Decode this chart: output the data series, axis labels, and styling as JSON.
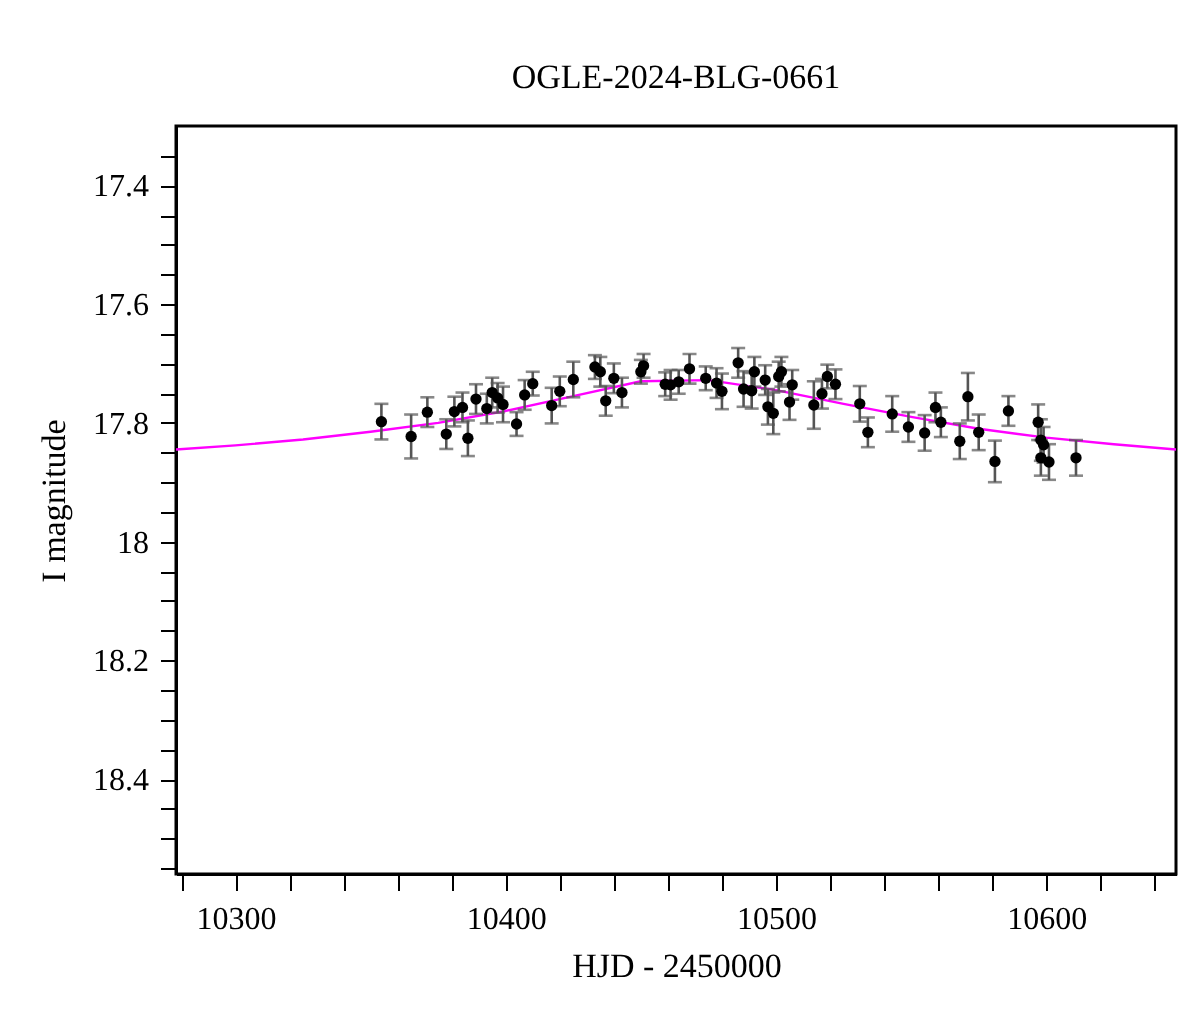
{
  "chart_data": {
    "type": "scatter",
    "title": "OGLE-2024-BLG-0661",
    "xlabel": "HJD - 2450000",
    "ylabel": "I magnitude",
    "xlim": [
      10278,
      10648
    ],
    "ylim": [
      18.56,
      17.3
    ],
    "xticks": [
      {
        "value": 10280,
        "label": null
      },
      10300,
      {
        "value": 10320,
        "label": null
      },
      {
        "value": 10340,
        "label": null
      },
      {
        "value": 10360,
        "label": null
      },
      {
        "value": 10380,
        "label": null
      },
      10400,
      {
        "value": 10420,
        "label": null
      },
      {
        "value": 10440,
        "label": null
      },
      {
        "value": 10460,
        "label": null
      },
      {
        "value": 10480,
        "label": null
      },
      10500,
      {
        "value": 10520,
        "label": null
      },
      {
        "value": 10540,
        "label": null
      },
      {
        "value": 10560,
        "label": null
      },
      {
        "value": 10580,
        "label": null
      },
      10600,
      {
        "value": 10620,
        "label": null
      },
      {
        "value": 10640,
        "label": null
      }
    ],
    "yticks": [
      {
        "value": 17.35,
        "label": null
      },
      17.4,
      {
        "value": 17.45,
        "label": null
      },
      {
        "value": 17.5,
        "label": null
      },
      {
        "value": 17.55,
        "label": null
      },
      17.6,
      {
        "value": 17.65,
        "label": null
      },
      {
        "value": 17.7,
        "label": null
      },
      {
        "value": 17.75,
        "label": null
      },
      17.8,
      {
        "value": 17.85,
        "label": null
      },
      {
        "value": 17.9,
        "label": null
      },
      {
        "value": 17.95,
        "label": null
      },
      18,
      {
        "value": 18.05,
        "label": null
      },
      {
        "value": 18.1,
        "label": null
      },
      {
        "value": 18.15,
        "label": null
      },
      18.2,
      {
        "value": 18.25,
        "label": null
      },
      {
        "value": 18.3,
        "label": null
      },
      {
        "value": 18.35,
        "label": null
      },
      18.4,
      {
        "value": 18.45,
        "label": null
      },
      {
        "value": 18.5,
        "label": null
      },
      {
        "value": 18.55,
        "label": null
      }
    ],
    "grid": false,
    "series": [
      {
        "type": "line",
        "color": "#ff00ff",
        "x": [
          10278,
          10300,
          10325,
          10350,
          10375,
          10400,
          10425,
          10450,
          10475,
          10500,
          10525,
          10550,
          10575,
          10600,
          10625,
          10648
        ],
        "values": [
          17.845,
          17.838,
          17.828,
          17.815,
          17.8,
          17.78,
          17.755,
          17.73,
          17.728,
          17.745,
          17.768,
          17.79,
          17.81,
          17.825,
          17.836,
          17.845
        ]
      },
      {
        "type": "scatter",
        "color": "#000000",
        "marker": "circle",
        "x": [
          10354,
          10365,
          10371,
          10378,
          10381,
          10384,
          10386,
          10389,
          10393,
          10395,
          10397,
          10399,
          10404,
          10407,
          10410,
          10417,
          10420,
          10425,
          10433,
          10435,
          10437,
          10440,
          10443,
          10450,
          10451,
          10459,
          10461,
          10464,
          10468,
          10474,
          10478,
          10480,
          10486,
          10488,
          10491,
          10492,
          10496,
          10497,
          10499,
          10501,
          10502,
          10505,
          10506,
          10514,
          10517,
          10519,
          10522,
          10531,
          10534,
          10543,
          10549,
          10555,
          10559,
          10561,
          10568,
          10571,
          10575,
          10581,
          10586,
          10597,
          10598,
          10599,
          10598,
          10601,
          10611
        ],
        "values": [
          17.798,
          17.823,
          17.782,
          17.819,
          17.781,
          17.774,
          17.826,
          17.76,
          17.776,
          17.749,
          17.758,
          17.769,
          17.802,
          17.753,
          17.734,
          17.771,
          17.747,
          17.727,
          17.706,
          17.714,
          17.763,
          17.725,
          17.749,
          17.714,
          17.704,
          17.735,
          17.736,
          17.731,
          17.709,
          17.725,
          17.733,
          17.747,
          17.699,
          17.743,
          17.746,
          17.714,
          17.728,
          17.773,
          17.784,
          17.722,
          17.714,
          17.765,
          17.736,
          17.77,
          17.751,
          17.722,
          17.735,
          17.768,
          17.816,
          17.785,
          17.807,
          17.817,
          17.774,
          17.799,
          17.831,
          17.756,
          17.816,
          17.865,
          17.78,
          17.799,
          17.829,
          17.837,
          17.859,
          17.866,
          17.859
        ],
        "errors": [
          0.03,
          0.037,
          0.025,
          0.025,
          0.025,
          0.025,
          0.03,
          0.025,
          0.025,
          0.025,
          0.025,
          0.03,
          0.02,
          0.025,
          0.02,
          0.03,
          0.025,
          0.03,
          0.02,
          0.025,
          0.025,
          0.025,
          0.025,
          0.02,
          0.02,
          0.02,
          0.025,
          0.02,
          0.025,
          0.02,
          0.025,
          0.03,
          0.025,
          0.03,
          0.03,
          0.025,
          0.025,
          0.03,
          0.035,
          0.025,
          0.025,
          0.03,
          0.025,
          0.04,
          0.025,
          0.02,
          0.025,
          0.03,
          0.025,
          0.03,
          0.025,
          0.03,
          0.025,
          0.025,
          0.03,
          0.04,
          0.03,
          0.035,
          0.025,
          0.03,
          0.035,
          0.03,
          0.03,
          0.03,
          0.03
        ]
      }
    ]
  }
}
